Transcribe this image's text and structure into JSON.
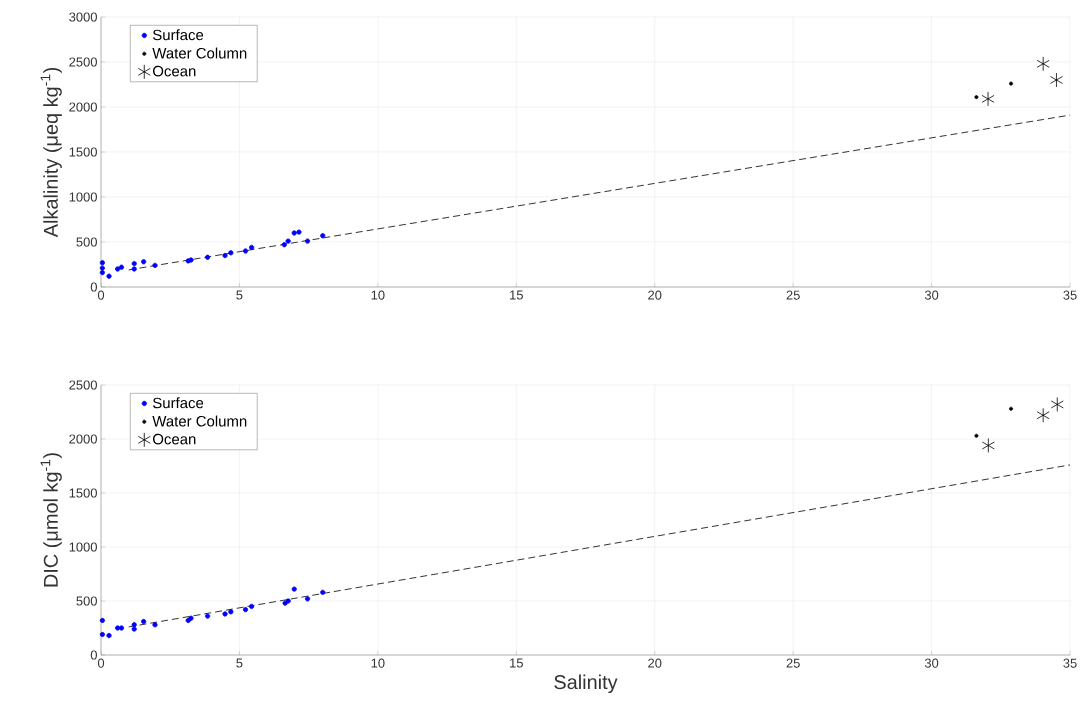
{
  "chart_data": [
    {
      "type": "scatter",
      "xlabel": null,
      "ylabel": "Alkalinity (μeq kg$^{-1}$)",
      "xlim": [
        0,
        35
      ],
      "xticks": [
        0,
        5,
        10,
        15,
        20,
        25,
        30,
        35
      ],
      "ylim": [
        0,
        3000
      ],
      "yticks": [
        0,
        500,
        1000,
        1500,
        2000,
        2500,
        3000
      ],
      "grid": true,
      "legend": "top left",
      "series": [
        {
          "name": "Surface",
          "color": "#0000ff",
          "marker": "circle",
          "x": [
            0.05,
            0.05,
            0.05,
            0.29,
            0.6,
            0.74,
            1.2,
            1.2,
            1.54,
            1.95,
            3.15,
            3.25,
            3.85,
            4.48,
            4.69,
            5.22,
            5.44,
            6.62,
            6.76,
            6.98,
            7.15,
            7.46,
            8.01
          ],
          "values": [
            270,
            210,
            160,
            120,
            200,
            220,
            260,
            200,
            280,
            240,
            290,
            300,
            330,
            350,
            380,
            400,
            440,
            470,
            510,
            600,
            610,
            510,
            570
          ]
        },
        {
          "name": "Water Column",
          "color": "#000000",
          "marker": "circle",
          "x": [
            31.62,
            32.87
          ],
          "values": [
            2110,
            2260
          ]
        },
        {
          "name": "Ocean",
          "color": "#000000",
          "marker": "cross",
          "x": [
            32.04,
            34.03,
            34.51
          ],
          "values": [
            2090,
            2480,
            2300
          ]
        },
        {
          "type": "line",
          "color": "#000000",
          "marker": "none",
          "line_style": "dashed",
          "x": [
            1,
            35
          ],
          "values": [
            190,
            1910
          ]
        }
      ]
    },
    {
      "type": "scatter",
      "xlabel": "Salinity",
      "ylabel": "DIC (μmol kg$^{-1}$)",
      "xlim": [
        0,
        35
      ],
      "xticks": [
        0,
        5,
        10,
        15,
        20,
        25,
        30,
        35
      ],
      "ylim": [
        0,
        2500
      ],
      "yticks": [
        0,
        500,
        1000,
        1500,
        2000,
        2500
      ],
      "grid": true,
      "legend": "top left",
      "series": [
        {
          "name": "Surface",
          "color": "#0000ff",
          "marker": "circle",
          "x": [
            0.05,
            0.05,
            0.29,
            0.6,
            0.74,
            1.2,
            1.2,
            1.54,
            1.95,
            3.15,
            3.25,
            3.85,
            4.48,
            4.69,
            5.22,
            5.44,
            6.65,
            6.76,
            6.98,
            7.46,
            8.01
          ],
          "values": [
            320,
            190,
            180,
            250,
            250,
            280,
            240,
            310,
            280,
            320,
            340,
            360,
            380,
            400,
            420,
            450,
            480,
            500,
            610,
            520,
            580
          ]
        },
        {
          "name": "Water Column",
          "color": "#000000",
          "marker": "circle",
          "x": [
            31.62,
            32.87
          ],
          "values": [
            2030,
            2280
          ]
        },
        {
          "name": "Ocean",
          "color": "#000000",
          "marker": "cross",
          "x": [
            32.05,
            34.03,
            34.54
          ],
          "values": [
            1940,
            2220,
            2320
          ]
        },
        {
          "type": "line",
          "color": "#000000",
          "marker": "none",
          "line_style": "dashed",
          "x": [
            1,
            35
          ],
          "values": [
            260,
            1760
          ]
        }
      ]
    }
  ]
}
